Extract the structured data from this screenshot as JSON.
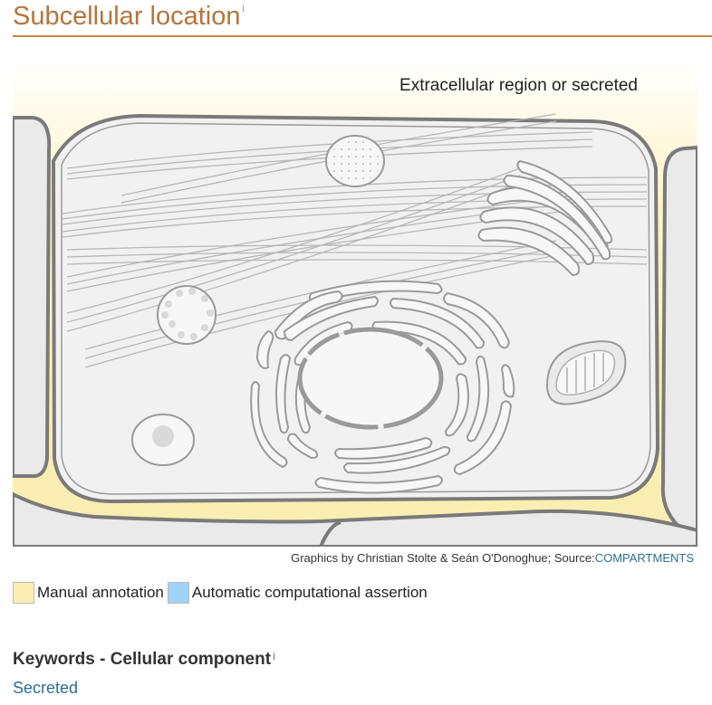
{
  "section": {
    "title": "Subcellular location",
    "info_marker": "i"
  },
  "figure": {
    "region_label": "Extracellular region or secreted",
    "credit_text": "Graphics by Christian Stolte & Seán O'Donoghue; Source:",
    "credit_link": "COMPARTMENTS"
  },
  "legend": {
    "manual": {
      "label": "Manual annotation",
      "color": "#fbeeb2"
    },
    "automatic": {
      "label": "Automatic computational assertion",
      "color": "#9fd3f7"
    }
  },
  "keywords": {
    "title": "Keywords - Cellular component",
    "info_marker": "i",
    "items": [
      "Secreted"
    ]
  },
  "colors": {
    "title": "#b5743a",
    "link": "#2a6f94",
    "highlight": "#fbeeb2"
  }
}
